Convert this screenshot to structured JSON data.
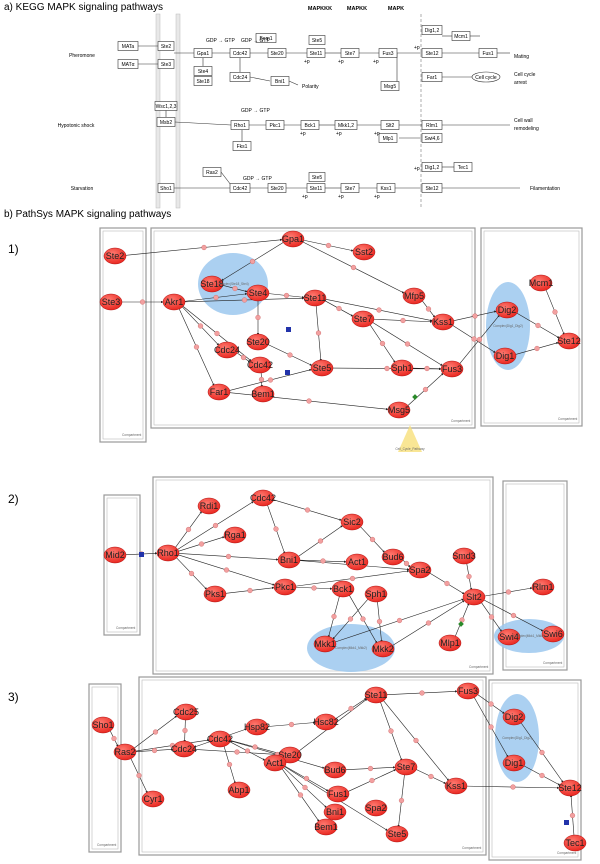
{
  "section_a": "a) KEGG MAPK signaling pathways",
  "section_b": "b) PathSys MAPK signaling pathways",
  "kegg": {
    "headers": [
      "MAPKKK",
      "MAPKK",
      "MAPK"
    ],
    "stimuli": [
      "Pheromone",
      "Hypotonic shock",
      "Starvation"
    ],
    "outcomes": [
      "Mating",
      "Cell cycle arrest",
      "Cell wall remodeling",
      "Filamentation",
      "Polarity"
    ],
    "small_labels": [
      "GDP",
      "GTP",
      "+p",
      "+u",
      "-p"
    ],
    "boxes": [
      "MATa",
      "MATα",
      "Ste2",
      "Ste3",
      "Gpa1",
      "Ste4",
      "Ste18",
      "Cdc42",
      "Cdc24",
      "Ste20",
      "Bem1",
      "Ste5",
      "Ste11",
      "Ste7",
      "Fus3",
      "Dig1,2",
      "Mcm1",
      "Ste12",
      "Fus1",
      "Far1",
      "Msg5",
      "Bni1",
      "Sho1",
      "Msb2",
      "Wsc1,2,3",
      "Rho1",
      "Pkc1",
      "Bck1",
      "Mkk1,2",
      "Slt2",
      "Mlp1",
      "Rlm1",
      "Fks1",
      "Ras2",
      "Kss1",
      "Tec1",
      "Swi4,6"
    ],
    "ovals": [
      "Cell cycle"
    ]
  },
  "panels": [
    {
      "label": "1)",
      "compartment_label": "Compartment",
      "nodes": [
        "Ste2",
        "Ste3",
        "Gpa1",
        "Sst2",
        "Ste18",
        "Ste4",
        "Akr1",
        "Ste11",
        "Mfp5",
        "Ste7",
        "Kss1",
        "Ste20",
        "Cdc24",
        "Cdc42",
        "Ste5",
        "Bem1",
        "Far1",
        "Sph1",
        "Fus3",
        "Msg5",
        "Mcm1",
        "Dig2",
        "Dig1",
        "Ste12"
      ],
      "complex_labels": [
        "Complex(Ste18_Ste4)",
        "Complex(Dig1_Dig2)"
      ],
      "pathway_label": "Cell_Cycle_Pathway"
    },
    {
      "label": "2)",
      "compartment_label": "Compartment",
      "nodes": [
        "Mid2",
        "Rho1",
        "Rdi1",
        "Rga1",
        "Cdc42",
        "Sic2",
        "Bud6",
        "Bni1",
        "Act1",
        "Spa2",
        "Smd3",
        "Pkc1",
        "Pks1",
        "Bck1",
        "Sph1",
        "Mkk1",
        "Mkk2",
        "Slt2",
        "Rlm1",
        "Mlp1",
        "Swi4",
        "Swi6"
      ],
      "complex_labels": [
        "Complex(Mkk1_Mkk2)"
      ]
    },
    {
      "label": "3)",
      "compartment_label": "Compartment",
      "nodes": [
        "Sho1",
        "Ras2",
        "Cyr1",
        "Cdc25",
        "Cdc42",
        "Cdc24",
        "Hsp82",
        "Hsc82",
        "Ste20",
        "Ste11",
        "Bud6",
        "Act1",
        "Fus1",
        "Abp1",
        "Bni1",
        "Spa2",
        "Bem1",
        "Ste7",
        "Ste5",
        "Fus3",
        "Kss1",
        "Dig2",
        "Dig1",
        "Ste12",
        "Tec1"
      ],
      "complex_labels": [
        "Complex(Dig1_Dig2)"
      ]
    }
  ],
  "colors": {
    "node": "#e8231c",
    "complex": "#9cc8ee",
    "edge": "#222222",
    "dot": "#f2a0a0"
  }
}
